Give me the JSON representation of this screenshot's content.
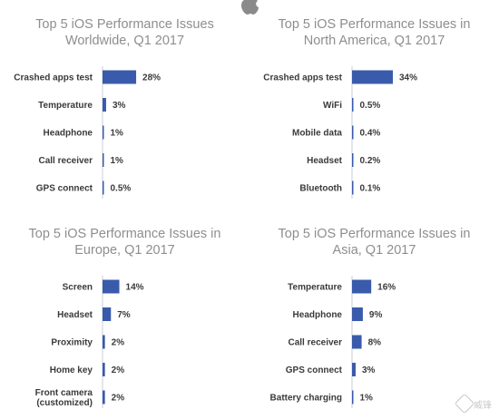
{
  "watermark_text": "威锋",
  "colors": {
    "bar": "#3a5bab",
    "axis": "#c9ced6",
    "title": "#8e8e8e",
    "label": "#3a3a3a"
  },
  "chart_data": [
    {
      "type": "bar",
      "title": "Top 5 iOS Performance Issues Worldwide, Q1 2017",
      "title_lines": [
        "Top 5 iOS Performance Issues",
        "Worldwide, Q1 2017"
      ],
      "categories": [
        "Crashed apps test",
        "Temperature",
        "Headphone",
        "Call receiver",
        "GPS connect"
      ],
      "values": [
        28,
        3,
        1,
        1,
        0.5
      ],
      "value_labels": [
        "28%",
        "3%",
        "1%",
        "1%",
        "0.5%"
      ],
      "xlim": [
        0,
        34
      ],
      "orientation": "horizontal"
    },
    {
      "type": "bar",
      "title": "Top 5 iOS Performance Issues in North America, Q1 2017",
      "title_lines": [
        "Top 5 iOS Performance Issues in",
        "North America, Q1 2017"
      ],
      "categories": [
        "Crashed apps test",
        "WiFi",
        "Mobile data",
        "Headset",
        "Bluetooth"
      ],
      "values": [
        34,
        0.5,
        0.4,
        0.2,
        0.1
      ],
      "value_labels": [
        "34%",
        "0.5%",
        "0.4%",
        "0.2%",
        "0.1%"
      ],
      "xlim": [
        0,
        34
      ],
      "orientation": "horizontal"
    },
    {
      "type": "bar",
      "title": "Top 5 iOS Performance Issues in Europe, Q1 2017",
      "title_lines": [
        "Top 5 iOS Performance Issues in",
        "Europe, Q1 2017"
      ],
      "categories": [
        "Screen",
        "Headset",
        "Proximity",
        "Home key",
        "Front camera (customized)"
      ],
      "category_lines": [
        [
          "Screen"
        ],
        [
          "Headset"
        ],
        [
          "Proximity"
        ],
        [
          "Home key"
        ],
        [
          "Front camera",
          "(customized)"
        ]
      ],
      "values": [
        14,
        7,
        2,
        2,
        2
      ],
      "value_labels": [
        "14%",
        "7%",
        "2%",
        "2%",
        "2%"
      ],
      "xlim": [
        0,
        34
      ],
      "orientation": "horizontal"
    },
    {
      "type": "bar",
      "title": "Top 5 iOS Performance Issues in Asia, Q1 2017",
      "title_lines": [
        "Top 5 iOS Performance Issues in",
        "Asia, Q1 2017"
      ],
      "categories": [
        "Temperature",
        "Headphone",
        "Call receiver",
        "GPS connect",
        "Battery charging"
      ],
      "values": [
        16,
        9,
        8,
        3,
        1
      ],
      "value_labels": [
        "16%",
        "9%",
        "8%",
        "3%",
        "1%"
      ],
      "xlim": [
        0,
        34
      ],
      "orientation": "horizontal"
    }
  ]
}
